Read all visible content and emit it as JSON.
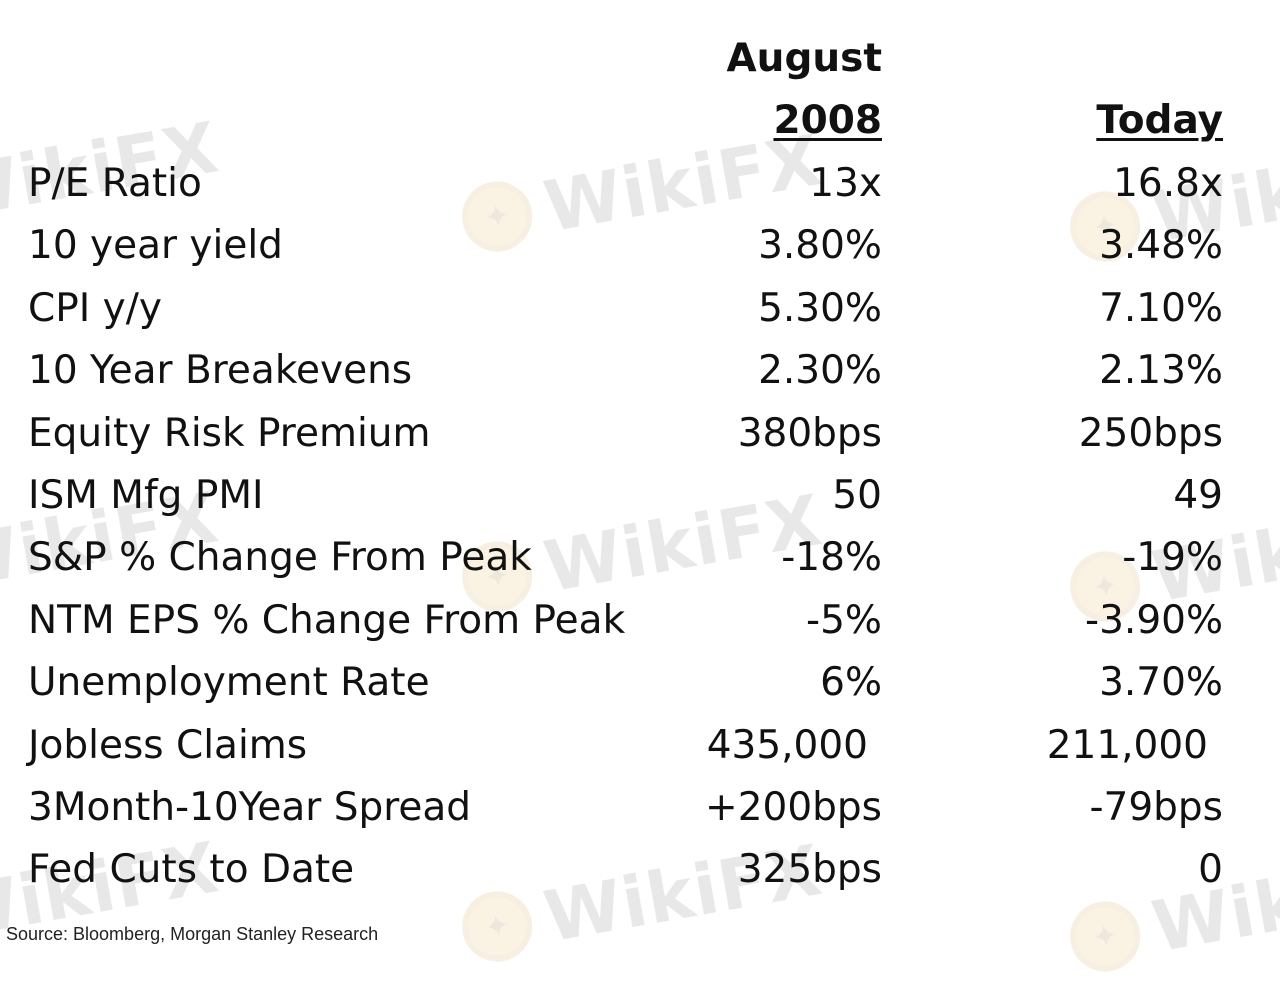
{
  "watermark": {
    "text": "WikiFX",
    "logo_icon": "wikifx-eagle-logo-icon",
    "color": "#c98a1e"
  },
  "table": {
    "header": {
      "col_2008_line1": "August",
      "col_2008_line2": "2008",
      "col_today": "Today"
    },
    "rows": [
      {
        "label": "P/E Ratio",
        "aug2008": "13x",
        "today": "16.8x"
      },
      {
        "label": "10 year yield",
        "aug2008": "3.80%",
        "today": "3.48%"
      },
      {
        "label": "CPI y/y",
        "aug2008": "5.30%",
        "today": "7.10%"
      },
      {
        "label": "10 Year Breakevens",
        "aug2008": "2.30%",
        "today": "2.13%"
      },
      {
        "label": "Equity Risk Premium",
        "aug2008": "380bps",
        "today": "250bps"
      },
      {
        "label": "ISM Mfg PMI",
        "aug2008": "50",
        "today": "49"
      },
      {
        "label": "S&P % Change From Peak",
        "aug2008": "-18%",
        "today": "-19%"
      },
      {
        "label": "NTM EPS % Change From Peak",
        "aug2008": "-5%",
        "today": "-3.90%"
      },
      {
        "label": "Unemployment Rate",
        "aug2008": "6%",
        "today": "3.70%"
      },
      {
        "label": "Jobless Claims",
        "aug2008": "435,000",
        "today": "211,000"
      },
      {
        "label": "3Month-10Year Spread",
        "aug2008": "+200bps",
        "today": "-79bps"
      },
      {
        "label": "Fed Cuts to Date",
        "aug2008": "325bps",
        "today": "0"
      }
    ]
  },
  "source": "Source: Bloomberg, Morgan Stanley Research"
}
